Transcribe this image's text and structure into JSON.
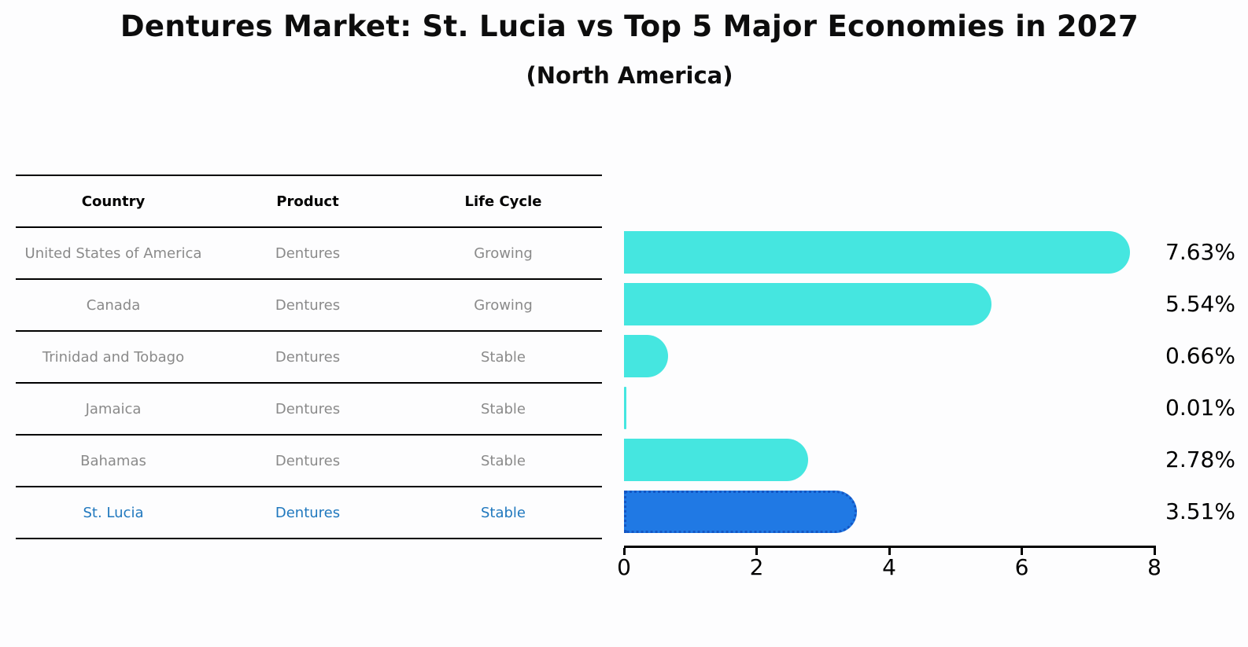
{
  "title": "Dentures Market: St. Lucia vs Top 5 Major Economies in 2027",
  "subtitle": "(North America)",
  "table": {
    "headers": [
      "Country",
      "Product",
      "Life Cycle"
    ],
    "rows": [
      {
        "country": "United States of America",
        "product": "Dentures",
        "life_cycle": "Growing",
        "highlight": false
      },
      {
        "country": "Canada",
        "product": "Dentures",
        "life_cycle": "Growing",
        "highlight": false
      },
      {
        "country": "Trinidad and Tobago",
        "product": "Dentures",
        "life_cycle": "Stable",
        "highlight": false
      },
      {
        "country": "Jamaica",
        "product": "Dentures",
        "life_cycle": "Stable",
        "highlight": false
      },
      {
        "country": "Bahamas",
        "product": "Dentures",
        "life_cycle": "Stable",
        "highlight": false
      },
      {
        "country": "St. Lucia",
        "product": "Dentures",
        "life_cycle": "Stable",
        "highlight": true
      }
    ]
  },
  "chart_data": {
    "type": "bar",
    "orientation": "horizontal",
    "title": "Dentures Market: St. Lucia vs Top 5 Major Economies in 2027",
    "subtitle": "(North America)",
    "categories": [
      "United States of America",
      "Canada",
      "Trinidad and Tobago",
      "Jamaica",
      "Bahamas",
      "St. Lucia"
    ],
    "values": [
      7.63,
      5.54,
      0.66,
      0.01,
      2.78,
      3.51
    ],
    "value_labels": [
      "7.63%",
      "5.54%",
      "0.66%",
      "0.01%",
      "2.78%",
      "3.51%"
    ],
    "xlim": [
      0,
      8
    ],
    "x_ticks": [
      "0",
      "2",
      "4",
      "6",
      "8"
    ],
    "highlight_index": 5,
    "grid": false,
    "legend": false
  },
  "colors": {
    "bar": "#45e6e0",
    "highlight_bar": "#2079e4",
    "highlight_border": "#1356c4",
    "table_text": "#8a8a8a",
    "highlight_text": "#2078be",
    "axis": "#000000"
  }
}
